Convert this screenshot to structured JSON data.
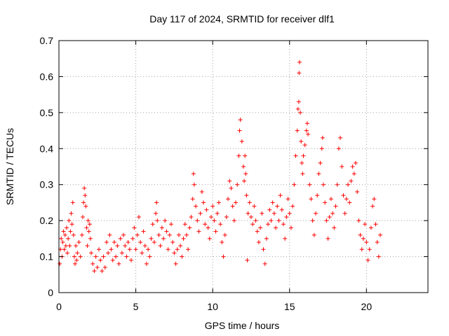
{
  "chart_data": {
    "type": "scatter",
    "title": "Day 117 of 2024, SRMTID for receiver dlf1",
    "xlabel": "GPS time / hours",
    "ylabel": "SRMTID / TECUs",
    "xlim": [
      0,
      24
    ],
    "ylim": [
      0,
      0.7
    ],
    "xticks": [
      0,
      5,
      10,
      15,
      20
    ],
    "yticks": [
      0,
      0.1,
      0.2,
      0.3,
      0.4,
      0.5,
      0.6,
      0.7
    ],
    "grid": true,
    "marker": "+",
    "color": "#ff0000",
    "points": [
      [
        0.05,
        0.08
      ],
      [
        0.1,
        0.12
      ],
      [
        0.15,
        0.15
      ],
      [
        0.2,
        0.1
      ],
      [
        0.25,
        0.14
      ],
      [
        0.3,
        0.17
      ],
      [
        0.35,
        0.12
      ],
      [
        0.4,
        0.16
      ],
      [
        0.45,
        0.13
      ],
      [
        0.5,
        0.18
      ],
      [
        0.55,
        0.11
      ],
      [
        0.6,
        0.15
      ],
      [
        0.65,
        0.2
      ],
      [
        0.7,
        0.13
      ],
      [
        0.75,
        0.17
      ],
      [
        0.8,
        0.22
      ],
      [
        0.85,
        0.19
      ],
      [
        0.9,
        0.25
      ],
      [
        0.95,
        0.16
      ],
      [
        1.0,
        0.1
      ],
      [
        1.05,
        0.08
      ],
      [
        1.1,
        0.13
      ],
      [
        1.15,
        0.09
      ],
      [
        1.2,
        0.11
      ],
      [
        1.3,
        0.14
      ],
      [
        1.4,
        0.1
      ],
      [
        1.5,
        0.16
      ],
      [
        1.55,
        0.21
      ],
      [
        1.6,
        0.25
      ],
      [
        1.65,
        0.29
      ],
      [
        1.7,
        0.27
      ],
      [
        1.75,
        0.24
      ],
      [
        1.8,
        0.18
      ],
      [
        1.85,
        0.13
      ],
      [
        1.9,
        0.2
      ],
      [
        1.95,
        0.17
      ],
      [
        2.0,
        0.19
      ],
      [
        2.05,
        0.15
      ],
      [
        2.1,
        0.11
      ],
      [
        2.2,
        0.08
      ],
      [
        2.3,
        0.06
      ],
      [
        2.4,
        0.1
      ],
      [
        2.5,
        0.07
      ],
      [
        2.6,
        0.12
      ],
      [
        2.7,
        0.09
      ],
      [
        2.8,
        0.06
      ],
      [
        2.9,
        0.1
      ],
      [
        3.0,
        0.07
      ],
      [
        3.1,
        0.14
      ],
      [
        3.2,
        0.11
      ],
      [
        3.3,
        0.16
      ],
      [
        3.4,
        0.12
      ],
      [
        3.5,
        0.09
      ],
      [
        3.6,
        0.14
      ],
      [
        3.7,
        0.1
      ],
      [
        3.8,
        0.13
      ],
      [
        3.9,
        0.08
      ],
      [
        4.0,
        0.15
      ],
      [
        4.1,
        0.11
      ],
      [
        4.2,
        0.16
      ],
      [
        4.3,
        0.13
      ],
      [
        4.4,
        0.1
      ],
      [
        4.5,
        0.14
      ],
      [
        4.6,
        0.12
      ],
      [
        4.7,
        0.09
      ],
      [
        4.8,
        0.15
      ],
      [
        4.9,
        0.18
      ],
      [
        5.0,
        0.12
      ],
      [
        5.1,
        0.16
      ],
      [
        5.2,
        0.21
      ],
      [
        5.3,
        0.14
      ],
      [
        5.4,
        0.11
      ],
      [
        5.5,
        0.17
      ],
      [
        5.6,
        0.13
      ],
      [
        5.7,
        0.08
      ],
      [
        5.8,
        0.12
      ],
      [
        5.9,
        0.1
      ],
      [
        6.0,
        0.15
      ],
      [
        6.1,
        0.19
      ],
      [
        6.2,
        0.14
      ],
      [
        6.3,
        0.22
      ],
      [
        6.35,
        0.25
      ],
      [
        6.4,
        0.2
      ],
      [
        6.5,
        0.16
      ],
      [
        6.6,
        0.13
      ],
      [
        6.7,
        0.18
      ],
      [
        6.8,
        0.15
      ],
      [
        6.9,
        0.2
      ],
      [
        7.0,
        0.17
      ],
      [
        7.1,
        0.12
      ],
      [
        7.2,
        0.16
      ],
      [
        7.3,
        0.19
      ],
      [
        7.4,
        0.14
      ],
      [
        7.5,
        0.11
      ],
      [
        7.6,
        0.08
      ],
      [
        7.7,
        0.12
      ],
      [
        7.8,
        0.16
      ],
      [
        7.9,
        0.13
      ],
      [
        8.0,
        0.1
      ],
      [
        8.1,
        0.15
      ],
      [
        8.2,
        0.19
      ],
      [
        8.3,
        0.16
      ],
      [
        8.4,
        0.12
      ],
      [
        8.5,
        0.18
      ],
      [
        8.6,
        0.21
      ],
      [
        8.7,
        0.26
      ],
      [
        8.75,
        0.33
      ],
      [
        8.8,
        0.3
      ],
      [
        8.9,
        0.24
      ],
      [
        9.0,
        0.2
      ],
      [
        9.1,
        0.17
      ],
      [
        9.2,
        0.22
      ],
      [
        9.3,
        0.28
      ],
      [
        9.4,
        0.25
      ],
      [
        9.5,
        0.19
      ],
      [
        9.6,
        0.23
      ],
      [
        9.7,
        0.18
      ],
      [
        9.8,
        0.15
      ],
      [
        9.9,
        0.21
      ],
      [
        10.0,
        0.24
      ],
      [
        10.1,
        0.2
      ],
      [
        10.2,
        0.17
      ],
      [
        10.3,
        0.22
      ],
      [
        10.4,
        0.25
      ],
      [
        10.5,
        0.19
      ],
      [
        10.6,
        0.14
      ],
      [
        10.7,
        0.1
      ],
      [
        10.8,
        0.16
      ],
      [
        10.9,
        0.21
      ],
      [
        11.0,
        0.26
      ],
      [
        11.1,
        0.31
      ],
      [
        11.2,
        0.29
      ],
      [
        11.3,
        0.24
      ],
      [
        11.4,
        0.2
      ],
      [
        11.5,
        0.25
      ],
      [
        11.6,
        0.3
      ],
      [
        11.7,
        0.38
      ],
      [
        11.75,
        0.45
      ],
      [
        11.8,
        0.48
      ],
      [
        11.9,
        0.42
      ],
      [
        12.0,
        0.35
      ],
      [
        12.05,
        0.31
      ],
      [
        12.1,
        0.38
      ],
      [
        12.15,
        0.33
      ],
      [
        12.2,
        0.27
      ],
      [
        12.25,
        0.09
      ],
      [
        12.3,
        0.22
      ],
      [
        12.4,
        0.25
      ],
      [
        12.5,
        0.21
      ],
      [
        12.6,
        0.19
      ],
      [
        12.7,
        0.24
      ],
      [
        12.8,
        0.2
      ],
      [
        12.9,
        0.17
      ],
      [
        13.0,
        0.14
      ],
      [
        13.1,
        0.18
      ],
      [
        13.2,
        0.22
      ],
      [
        13.3,
        0.12
      ],
      [
        13.4,
        0.08
      ],
      [
        13.5,
        0.15
      ],
      [
        13.6,
        0.19
      ],
      [
        13.7,
        0.23
      ],
      [
        13.8,
        0.2
      ],
      [
        13.9,
        0.25
      ],
      [
        14.0,
        0.22
      ],
      [
        14.1,
        0.18
      ],
      [
        14.2,
        0.24
      ],
      [
        14.3,
        0.2
      ],
      [
        14.4,
        0.27
      ],
      [
        14.5,
        0.23
      ],
      [
        14.6,
        0.19
      ],
      [
        14.7,
        0.15
      ],
      [
        14.8,
        0.21
      ],
      [
        14.9,
        0.26
      ],
      [
        15.0,
        0.22
      ],
      [
        15.1,
        0.18
      ],
      [
        15.2,
        0.24
      ],
      [
        15.3,
        0.3
      ],
      [
        15.4,
        0.38
      ],
      [
        15.5,
        0.45
      ],
      [
        15.55,
        0.51
      ],
      [
        15.6,
        0.53
      ],
      [
        15.62,
        0.61
      ],
      [
        15.65,
        0.64
      ],
      [
        15.7,
        0.5
      ],
      [
        15.75,
        0.42
      ],
      [
        15.8,
        0.36
      ],
      [
        15.85,
        0.33
      ],
      [
        15.9,
        0.38
      ],
      [
        16.0,
        0.41
      ],
      [
        16.1,
        0.45
      ],
      [
        16.15,
        0.47
      ],
      [
        16.2,
        0.44
      ],
      [
        16.3,
        0.3
      ],
      [
        16.4,
        0.26
      ],
      [
        16.5,
        0.2
      ],
      [
        16.6,
        0.16
      ],
      [
        16.7,
        0.22
      ],
      [
        16.8,
        0.27
      ],
      [
        16.9,
        0.33
      ],
      [
        17.0,
        0.36
      ],
      [
        17.1,
        0.4
      ],
      [
        17.15,
        0.43
      ],
      [
        17.2,
        0.3
      ],
      [
        17.3,
        0.25
      ],
      [
        17.4,
        0.2
      ],
      [
        17.5,
        0.15
      ],
      [
        17.6,
        0.21
      ],
      [
        17.7,
        0.26
      ],
      [
        17.8,
        0.22
      ],
      [
        17.9,
        0.18
      ],
      [
        18.0,
        0.24
      ],
      [
        18.1,
        0.3
      ],
      [
        18.2,
        0.4
      ],
      [
        18.3,
        0.43
      ],
      [
        18.4,
        0.35
      ],
      [
        18.5,
        0.27
      ],
      [
        18.6,
        0.22
      ],
      [
        18.7,
        0.26
      ],
      [
        18.8,
        0.3
      ],
      [
        18.9,
        0.25
      ],
      [
        19.0,
        0.31
      ],
      [
        19.1,
        0.35
      ],
      [
        19.2,
        0.33
      ],
      [
        19.3,
        0.36
      ],
      [
        19.4,
        0.28
      ],
      [
        19.5,
        0.2
      ],
      [
        19.6,
        0.16
      ],
      [
        19.7,
        0.12
      ],
      [
        19.8,
        0.15
      ],
      [
        19.9,
        0.19
      ],
      [
        20.0,
        0.14
      ],
      [
        20.1,
        0.09
      ],
      [
        20.2,
        0.12
      ],
      [
        20.3,
        0.18
      ],
      [
        20.4,
        0.24
      ],
      [
        20.5,
        0.26
      ],
      [
        20.6,
        0.19
      ],
      [
        20.7,
        0.14
      ],
      [
        20.8,
        0.1
      ],
      [
        20.9,
        0.16
      ]
    ]
  }
}
